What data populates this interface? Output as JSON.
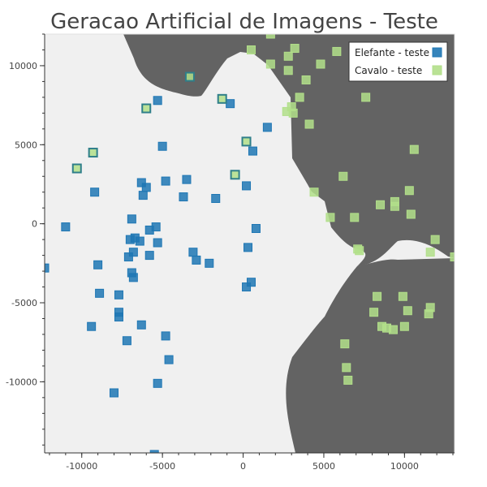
{
  "chart_data": {
    "type": "scatter",
    "title": "Geracao Artificial de Imagens - Teste",
    "xlabel": "",
    "ylabel": "",
    "xlim": [
      -12300,
      13100
    ],
    "ylim": [
      -14500,
      12000
    ],
    "x_ticks": [
      -10000,
      -5000,
      0,
      5000,
      10000
    ],
    "y_ticks": [
      -10000,
      -5000,
      0,
      5000,
      10000
    ],
    "grid": false,
    "legend_position": "top-right",
    "background": {
      "description": "decision regions",
      "light_region_color": "#f0f0f0",
      "dark_region_color": "#636363"
    },
    "series": [
      {
        "name": "Elefante - teste",
        "color": "#1f77b4",
        "points": [
          [
            -12300,
            -2800
          ],
          [
            -11000,
            -200
          ],
          [
            -9200,
            2000
          ],
          [
            -9000,
            -2600
          ],
          [
            -8900,
            -4400
          ],
          [
            -9400,
            -6500
          ],
          [
            -8000,
            -10700
          ],
          [
            -7700,
            -4500
          ],
          [
            -7700,
            -5600
          ],
          [
            -7700,
            -5900
          ],
          [
            -7200,
            -7400
          ],
          [
            -7000,
            -1000
          ],
          [
            -7100,
            -2100
          ],
          [
            -6900,
            -3100
          ],
          [
            -6800,
            -3400
          ],
          [
            -6800,
            -1800
          ],
          [
            -6900,
            300
          ],
          [
            -6700,
            -900
          ],
          [
            -6400,
            -1100
          ],
          [
            -6300,
            2600
          ],
          [
            -6000,
            2300
          ],
          [
            -6200,
            1800
          ],
          [
            -6300,
            -6400
          ],
          [
            -5800,
            -400
          ],
          [
            -5800,
            -2000
          ],
          [
            -5400,
            -200
          ],
          [
            -5300,
            -1200
          ],
          [
            -5000,
            4900
          ],
          [
            -4800,
            2700
          ],
          [
            -4600,
            -8600
          ],
          [
            -4800,
            -7100
          ],
          [
            -5300,
            7800
          ],
          [
            -5300,
            -10100
          ],
          [
            -5500,
            -14600
          ],
          [
            -3700,
            1700
          ],
          [
            -3500,
            2800
          ],
          [
            -3100,
            -1800
          ],
          [
            -2900,
            -2300
          ],
          [
            -2100,
            -2500
          ],
          [
            -1700,
            1600
          ],
          [
            -800,
            7600
          ],
          [
            200,
            2400
          ],
          [
            300,
            -1500
          ],
          [
            500,
            -3700
          ],
          [
            200,
            -4000
          ],
          [
            600,
            4600
          ],
          [
            800,
            -300
          ],
          [
            1500,
            6100
          ]
        ]
      },
      {
        "name": "Cavalo - teste",
        "color": "#b2df8a",
        "points": [
          [
            1700,
            12000
          ],
          [
            500,
            11000
          ],
          [
            1700,
            10100
          ],
          [
            2800,
            10600
          ],
          [
            2800,
            9700
          ],
          [
            3200,
            11100
          ],
          [
            3900,
            9100
          ],
          [
            4800,
            10100
          ],
          [
            5800,
            10900
          ],
          [
            3500,
            8000
          ],
          [
            3000,
            7400
          ],
          [
            3100,
            7000
          ],
          [
            2700,
            7100
          ],
          [
            4100,
            6300
          ],
          [
            7600,
            8000
          ],
          [
            10600,
            4700
          ],
          [
            6200,
            3000
          ],
          [
            4400,
            2000
          ],
          [
            5400,
            400
          ],
          [
            6900,
            400
          ],
          [
            8500,
            1200
          ],
          [
            9400,
            1400
          ],
          [
            9400,
            1100
          ],
          [
            10300,
            2100
          ],
          [
            10400,
            600
          ],
          [
            11900,
            -1000
          ],
          [
            11600,
            -1800
          ],
          [
            13100,
            -2100
          ],
          [
            7100,
            -1600
          ],
          [
            7200,
            -1700
          ],
          [
            8300,
            -4600
          ],
          [
            8100,
            -5600
          ],
          [
            8600,
            -6500
          ],
          [
            8900,
            -6600
          ],
          [
            9300,
            -6700
          ],
          [
            9900,
            -4600
          ],
          [
            10200,
            -5500
          ],
          [
            11600,
            -5300
          ],
          [
            11500,
            -5700
          ],
          [
            10000,
            -6500
          ],
          [
            6300,
            -7600
          ],
          [
            6400,
            -9100
          ],
          [
            6500,
            -9900
          ]
        ]
      },
      {
        "name": "",
        "color": "#b2df8a",
        "stroke": "#2f7f8a",
        "points": [
          [
            -3300,
            9300
          ],
          [
            -6000,
            7300
          ],
          [
            -1300,
            7900
          ],
          [
            -9300,
            4500
          ],
          [
            -10300,
            3500
          ],
          [
            -500,
            3100
          ],
          [
            200,
            5200
          ]
        ]
      }
    ],
    "legend": [
      {
        "label": "Elefante - teste",
        "color": "#1f77b4"
      },
      {
        "label": "Cavalo - teste",
        "color": "#b2df8a"
      }
    ]
  }
}
